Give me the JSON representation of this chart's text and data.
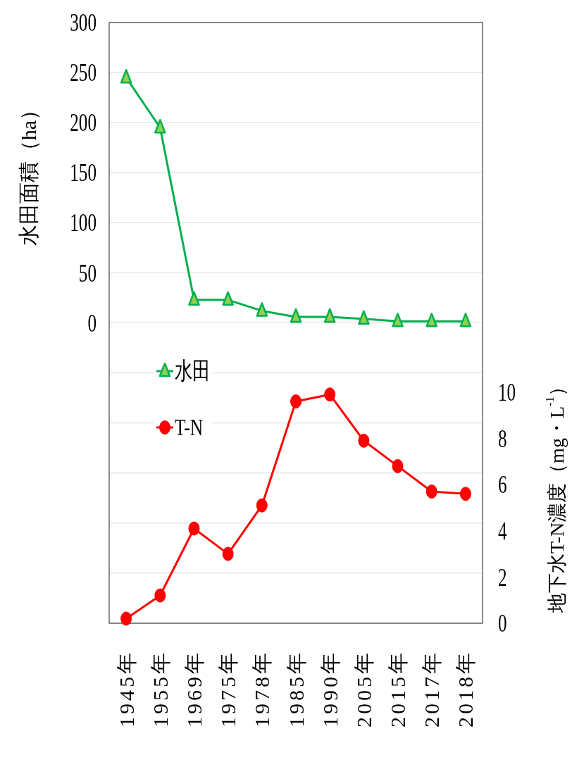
{
  "chart_data": {
    "type": "line",
    "categories": [
      "1945年",
      "1955年",
      "1969年",
      "1975年",
      "1978年",
      "1985年",
      "1990年",
      "2005年",
      "2015年",
      "2017年",
      "2018年"
    ],
    "ylabel": "水田面積（ha）",
    "y2label": "地下水T-N濃度（mg・L$^{-1}$）",
    "ylim": [
      -300,
      300
    ],
    "yticks": [
      {
        "value": -300,
        "label": null
      },
      {
        "value": -250,
        "label": null
      },
      {
        "value": -200,
        "label": null
      },
      {
        "value": -150,
        "label": null
      },
      {
        "value": -100,
        "label": null
      },
      {
        "value": -50,
        "label": null
      },
      0,
      50,
      100,
      150,
      200,
      250,
      300
    ],
    "y2lim": [
      0,
      26
    ],
    "y2ticks": [
      0,
      2,
      4,
      6,
      8,
      10
    ],
    "grid": "y",
    "legend": "left",
    "series": [
      {
        "name": "水田",
        "color": "#00b050",
        "marker": "triangle",
        "values": [
          245,
          195,
          23,
          23,
          12,
          6,
          6,
          4,
          1.5,
          1.5,
          1.5
        ]
      },
      {
        "name": "T-N",
        "color": "#ff0000",
        "marker": "circle",
        "axis": "y2",
        "values": [
          0.2,
          1.2,
          4.1,
          3.0,
          5.1,
          9.6,
          9.9,
          7.9,
          6.8,
          5.7,
          5.6
        ]
      }
    ]
  }
}
